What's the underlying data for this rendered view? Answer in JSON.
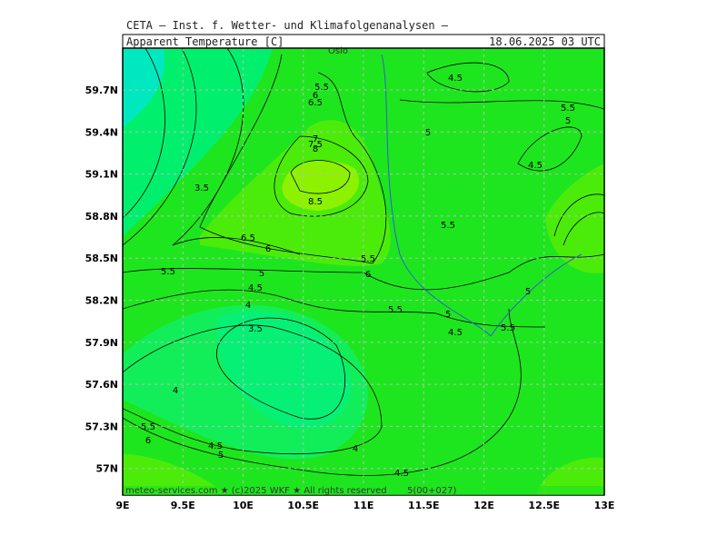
{
  "header": {
    "institute": "CETA — Inst. f. Wetter- und Klimafolgenanalysen —",
    "variable": "Apparent_Temperature_[C]",
    "valid_time": "18.06.2025 03 UTC"
  },
  "map": {
    "place_label": "Oslo",
    "x_axis_labels": [
      "9E",
      "9.5E",
      "10E",
      "10.5E",
      "11E",
      "11.5E",
      "12E",
      "12.5E",
      "13E"
    ],
    "y_axis_labels": [
      "59.7N",
      "59.4N",
      "59.1N",
      "58.8N",
      "58.5N",
      "58.2N",
      "57.9N",
      "57.6N",
      "57.3N",
      "57N"
    ],
    "contour_labels": [
      "5.5",
      "6",
      "6.5",
      "4.5",
      "5.5",
      "5",
      "5",
      "4.5",
      "7",
      "7.5",
      "8",
      "3.5",
      "8.5",
      "5.5",
      "6.5",
      "6",
      "5.5",
      "5",
      "5.5",
      "6",
      "4.5",
      "5",
      "4",
      "5.5",
      "5",
      "5.5",
      "3.5",
      "4.5",
      "4",
      "5.5",
      "6",
      "4.5",
      "5",
      "4",
      "4.5"
    ]
  },
  "footer": {
    "credit": "meteo-services.com ★ (c)2025 WKF ★ All rights reserved",
    "run": "5(00+027)"
  }
}
